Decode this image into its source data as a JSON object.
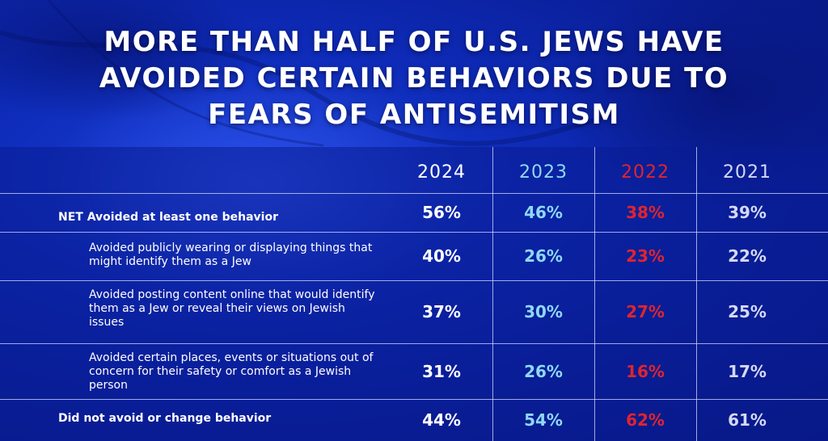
{
  "title_lines": [
    "MORE THAN HALF OF U.S. JEWS HAVE",
    "AVOIDED CERTAIN BEHAVIORS DUE TO",
    "FEARS OF ANTISEMITISM"
  ],
  "colors": {
    "y2024": "#ffffff",
    "y2023": "#8fd8f5",
    "y2022": "#e0242e",
    "y2021": "#d4d9f5"
  },
  "chart_data": {
    "type": "table",
    "title": "MORE THAN HALF OF U.S. JEWS HAVE AVOIDED CERTAIN BEHAVIORS DUE TO FEARS OF ANTISEMITISM",
    "columns": [
      "2024",
      "2023",
      "2022",
      "2021"
    ],
    "rows": [
      {
        "label": "NET Avoided at least one behavior",
        "style": "net",
        "values": [
          "56%",
          "46%",
          "38%",
          "39%"
        ]
      },
      {
        "label": "Avoided publicly wearing or displaying things that might identify them as a Jew",
        "style": "sub",
        "values": [
          "40%",
          "26%",
          "23%",
          "22%"
        ]
      },
      {
        "label": "Avoided posting content online that would identify them as a Jew or reveal their views on Jewish issues",
        "style": "sub",
        "values": [
          "37%",
          "30%",
          "27%",
          "25%"
        ]
      },
      {
        "label": "Avoided certain places, events or situations out of concern for their safety or comfort as a Jewish person",
        "style": "sub",
        "values": [
          "31%",
          "26%",
          "16%",
          "17%"
        ]
      },
      {
        "label": "Did not avoid or change behavior",
        "style": "net",
        "values": [
          "44%",
          "54%",
          "62%",
          "61%"
        ]
      }
    ]
  }
}
